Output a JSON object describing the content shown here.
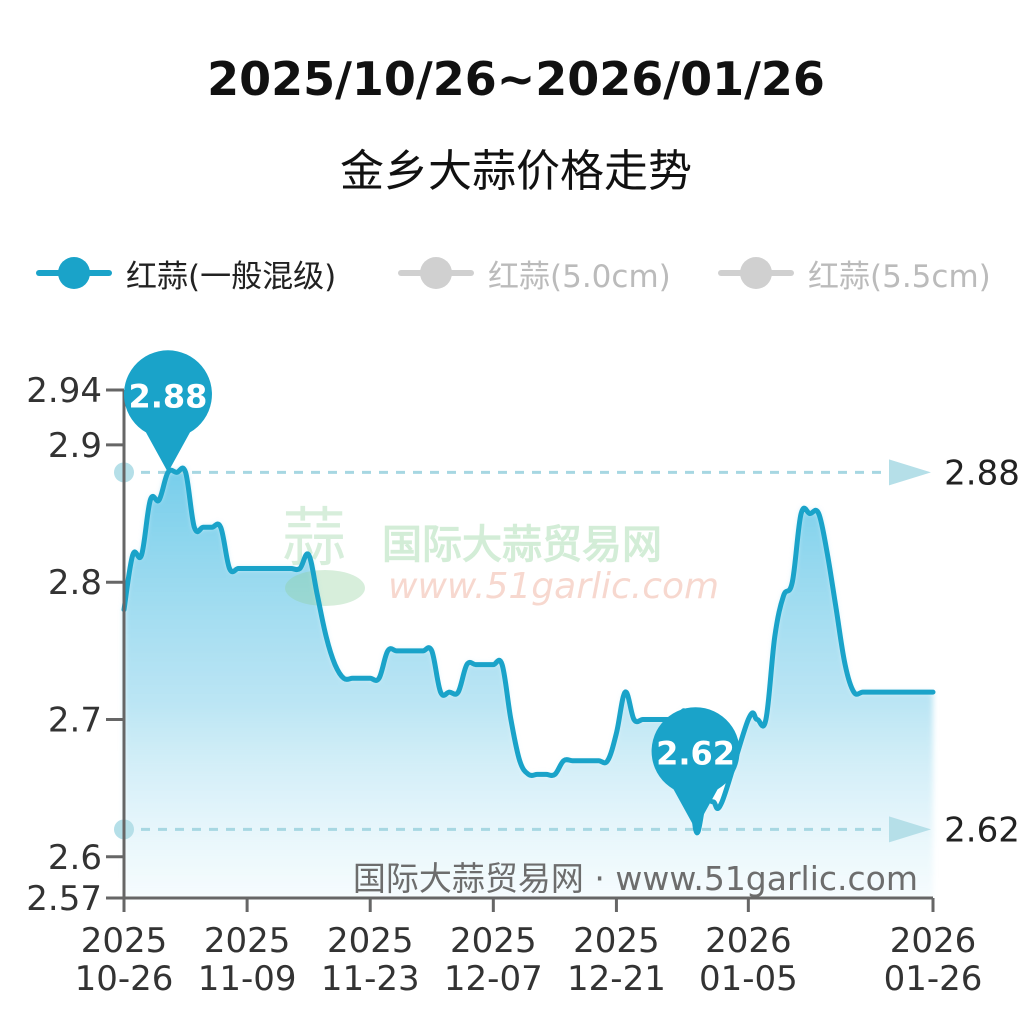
{
  "title": "2025/10/26~2026/01/26",
  "subtitle": "金乡大蒜价格走势",
  "legend": [
    {
      "label": "红蒜(一般混级)",
      "color": "#1aa3c9",
      "active": true
    },
    {
      "label": "红蒜(5.0cm)",
      "color": "#cccccc",
      "active": false
    },
    {
      "label": "红蒜(5.5cm)",
      "color": "#cccccc",
      "active": false
    }
  ],
  "watermark": {
    "cn": "国际大蒜贸易网",
    "url": "www.51garlic.com",
    "footer": "国际大蒜贸易网 · www.51garlic.com"
  },
  "chart_data": {
    "type": "area",
    "series": [
      {
        "name": "红蒜(一般混级)",
        "x": [
          "2025-10-26",
          "2025-10-27",
          "2025-10-28",
          "2025-10-29",
          "2025-10-30",
          "2025-10-31",
          "2025-11-01",
          "2025-11-02",
          "2025-11-03",
          "2025-11-04",
          "2025-11-05",
          "2025-11-06",
          "2025-11-07",
          "2025-11-08",
          "2025-11-09",
          "2025-11-10",
          "2025-11-11",
          "2025-11-12",
          "2025-11-13",
          "2025-11-14",
          "2025-11-15",
          "2025-11-16",
          "2025-11-17",
          "2025-11-18",
          "2025-11-19",
          "2025-11-20",
          "2025-11-21",
          "2025-11-22",
          "2025-11-23",
          "2025-11-24",
          "2025-11-25",
          "2025-11-26",
          "2025-11-27",
          "2025-11-28",
          "2025-11-29",
          "2025-11-30",
          "2025-12-01",
          "2025-12-02",
          "2025-12-03",
          "2025-12-04",
          "2025-12-05",
          "2025-12-06",
          "2025-12-07",
          "2025-12-08",
          "2025-12-09",
          "2025-12-10",
          "2025-12-11",
          "2025-12-12",
          "2025-12-13",
          "2025-12-14",
          "2025-12-15",
          "2025-12-16",
          "2025-12-17",
          "2025-12-18",
          "2025-12-19",
          "2025-12-20",
          "2025-12-21",
          "2025-12-22",
          "2025-12-23",
          "2025-12-24",
          "2025-12-25",
          "2025-12-26",
          "2025-12-27",
          "2025-12-28",
          "2025-12-29",
          "2025-12-30",
          "2025-12-31",
          "2026-01-01",
          "2026-01-02",
          "2026-01-05",
          "2026-01-06",
          "2026-01-07",
          "2026-01-08",
          "2026-01-09",
          "2026-01-10",
          "2026-01-11",
          "2026-01-12",
          "2026-01-13",
          "2026-01-14",
          "2026-01-15",
          "2026-01-16",
          "2026-01-17",
          "2026-01-18",
          "2026-01-19",
          "2026-01-20",
          "2026-01-21",
          "2026-01-22",
          "2026-01-23",
          "2026-01-24",
          "2026-01-25",
          "2026-01-26"
        ],
        "y": [
          2.78,
          2.82,
          2.82,
          2.86,
          2.86,
          2.88,
          2.88,
          2.88,
          2.84,
          2.84,
          2.84,
          2.84,
          2.81,
          2.81,
          2.81,
          2.81,
          2.81,
          2.81,
          2.81,
          2.81,
          2.81,
          2.82,
          2.79,
          2.76,
          2.74,
          2.73,
          2.73,
          2.73,
          2.73,
          2.73,
          2.75,
          2.75,
          2.75,
          2.75,
          2.75,
          2.75,
          2.72,
          2.72,
          2.72,
          2.74,
          2.74,
          2.74,
          2.74,
          2.74,
          2.7,
          2.67,
          2.66,
          2.66,
          2.66,
          2.66,
          2.67,
          2.67,
          2.67,
          2.67,
          2.67,
          2.67,
          2.69,
          2.72,
          2.7,
          2.7,
          2.7,
          2.7,
          2.7,
          2.7,
          2.7,
          2.62,
          2.64,
          2.64,
          2.64,
          2.7,
          2.7,
          2.7,
          2.76,
          2.79,
          2.8,
          2.85,
          2.85,
          2.85,
          2.82,
          2.78,
          2.74,
          2.72,
          2.72,
          2.72,
          2.72,
          2.72,
          2.72,
          2.72,
          2.72,
          2.72,
          2.72
        ]
      }
    ],
    "ylim": [
      2.57,
      2.94
    ],
    "y_ticks": [
      "2.94",
      "2.9",
      "2.8",
      "2.7",
      "2.6",
      "2.57"
    ],
    "x_ticks": [
      {
        "year": "2025",
        "date": "10-26"
      },
      {
        "year": "2025",
        "date": "11-09"
      },
      {
        "year": "2025",
        "date": "11-23"
      },
      {
        "year": "2025",
        "date": "12-07"
      },
      {
        "year": "2025",
        "date": "12-21"
      },
      {
        "year": "2026",
        "date": "01-05"
      },
      {
        "year": "2026",
        "date": "01-26"
      }
    ],
    "max": {
      "label": "2.88",
      "value": 2.88
    },
    "min": {
      "label": "2.62",
      "value": 2.62
    },
    "colors": {
      "line": "#1aa3c9",
      "fill": "#7fd2ee",
      "axis": "#666666",
      "ref": "#a7d7e2"
    }
  }
}
